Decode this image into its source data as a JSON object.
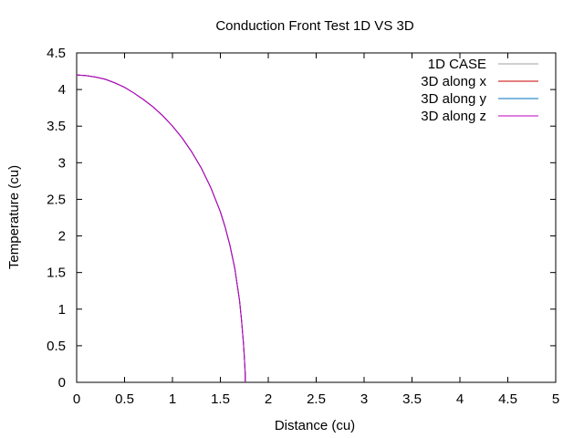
{
  "chart_data": {
    "type": "line",
    "title": "Conduction Front Test 1D VS 3D",
    "xlabel": "Distance (cu)",
    "ylabel": "Temperature (cu)",
    "xlim": [
      0,
      5
    ],
    "ylim": [
      0,
      4.5
    ],
    "xticks": [
      "0",
      "0.5",
      "1",
      "1.5",
      "2",
      "2.5",
      "3",
      "3.5",
      "4",
      "4.5",
      "5"
    ],
    "yticks": [
      "0",
      "0.5",
      "1",
      "1.5",
      "2",
      "2.5",
      "3",
      "3.5",
      "4",
      "4.5"
    ],
    "grid": false,
    "legend_position": "top-right",
    "series": [
      {
        "name": "1D CASE",
        "color": "#a0a0a0",
        "x": [
          0,
          0.1,
          0.2,
          0.3,
          0.4,
          0.5,
          0.6,
          0.7,
          0.8,
          0.9,
          1.0,
          1.1,
          1.2,
          1.3,
          1.4,
          1.5,
          1.55,
          1.6,
          1.65,
          1.7,
          1.72,
          1.74,
          1.75,
          1.76,
          1.76
        ],
        "y": [
          4.2,
          4.19,
          4.17,
          4.14,
          4.09,
          4.03,
          3.95,
          3.86,
          3.76,
          3.64,
          3.5,
          3.34,
          3.15,
          2.93,
          2.66,
          2.33,
          2.12,
          1.87,
          1.56,
          1.12,
          0.86,
          0.55,
          0.35,
          0.1,
          0
        ]
      },
      {
        "name": "3D along x",
        "color": "#cc0000",
        "x": [
          0,
          0.1,
          0.2,
          0.3,
          0.4,
          0.5,
          0.6,
          0.7,
          0.8,
          0.9,
          1.0,
          1.1,
          1.2,
          1.3,
          1.4,
          1.5,
          1.55,
          1.6,
          1.65,
          1.7,
          1.72,
          1.74,
          1.75,
          1.76,
          1.76
        ],
        "y": [
          4.2,
          4.19,
          4.17,
          4.14,
          4.09,
          4.03,
          3.95,
          3.86,
          3.76,
          3.64,
          3.5,
          3.34,
          3.15,
          2.93,
          2.66,
          2.33,
          2.12,
          1.87,
          1.56,
          1.12,
          0.86,
          0.55,
          0.35,
          0.1,
          0
        ]
      },
      {
        "name": "3D along y",
        "color": "#0070c0",
        "x": [
          0,
          0.1,
          0.2,
          0.3,
          0.4,
          0.5,
          0.6,
          0.7,
          0.8,
          0.9,
          1.0,
          1.1,
          1.2,
          1.3,
          1.4,
          1.5,
          1.55,
          1.6,
          1.65,
          1.7,
          1.72,
          1.74,
          1.75,
          1.76,
          1.76
        ],
        "y": [
          4.2,
          4.19,
          4.17,
          4.14,
          4.09,
          4.03,
          3.95,
          3.86,
          3.76,
          3.64,
          3.5,
          3.34,
          3.15,
          2.93,
          2.66,
          2.33,
          2.12,
          1.87,
          1.56,
          1.12,
          0.86,
          0.55,
          0.35,
          0.1,
          0
        ]
      },
      {
        "name": "3D along z",
        "color": "#c000c0",
        "x": [
          0,
          0.1,
          0.2,
          0.3,
          0.4,
          0.5,
          0.6,
          0.7,
          0.8,
          0.9,
          1.0,
          1.1,
          1.2,
          1.3,
          1.4,
          1.5,
          1.55,
          1.6,
          1.65,
          1.7,
          1.72,
          1.74,
          1.75,
          1.76,
          1.76
        ],
        "y": [
          4.2,
          4.19,
          4.17,
          4.14,
          4.09,
          4.03,
          3.95,
          3.86,
          3.76,
          3.64,
          3.5,
          3.34,
          3.15,
          2.93,
          2.66,
          2.33,
          2.12,
          1.87,
          1.56,
          1.12,
          0.86,
          0.55,
          0.35,
          0.1,
          0
        ]
      }
    ]
  }
}
